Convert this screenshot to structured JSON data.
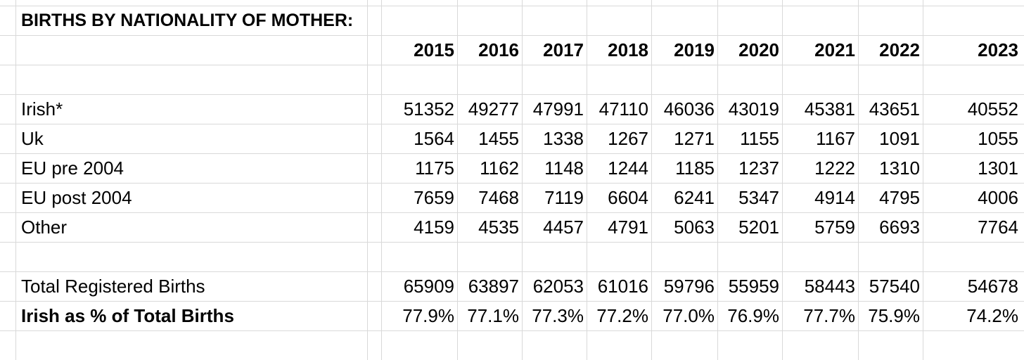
{
  "title": "BIRTHS BY NATIONALITY OF MOTHER:",
  "years": [
    "2015",
    "2016",
    "2017",
    "2018",
    "2019",
    "2020",
    "2021",
    "2022",
    "2023"
  ],
  "rows": [
    {
      "label": "Irish*",
      "values": [
        "51352",
        "49277",
        "47991",
        "47110",
        "46036",
        "43019",
        "45381",
        "43651",
        "40552"
      ]
    },
    {
      "label": "Uk",
      "values": [
        "1564",
        "1455",
        "1338",
        "1267",
        "1271",
        "1155",
        "1167",
        "1091",
        "1055"
      ]
    },
    {
      "label": "EU pre 2004",
      "values": [
        "1175",
        "1162",
        "1148",
        "1244",
        "1185",
        "1237",
        "1222",
        "1310",
        "1301"
      ]
    },
    {
      "label": "EU post 2004",
      "values": [
        "7659",
        "7468",
        "7119",
        "6604",
        "6241",
        "5347",
        "4914",
        "4795",
        "4006"
      ]
    },
    {
      "label": "Other",
      "values": [
        "4159",
        "4535",
        "4457",
        "4791",
        "5063",
        "5201",
        "5759",
        "6693",
        "7764"
      ]
    }
  ],
  "total": {
    "label": "Total Registered Births",
    "values": [
      "65909",
      "63897",
      "62053",
      "61016",
      "59796",
      "55959",
      "58443",
      "57540",
      "54678"
    ]
  },
  "percent": {
    "label": "Irish as % of Total Births",
    "values": [
      "77.9%",
      "77.1%",
      "77.3%",
      "77.2%",
      "77.0%",
      "76.9%",
      "77.7%",
      "75.9%",
      "74.2%"
    ]
  }
}
